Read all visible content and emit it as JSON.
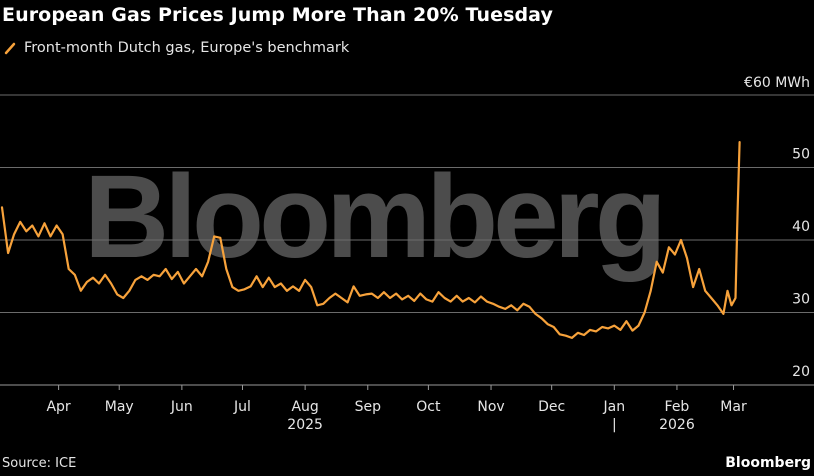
{
  "page": {
    "title": "European Gas Prices Jump More Than 20% Tuesday",
    "source": "Source: ICE",
    "brand": "Bloomberg",
    "watermark": "Bloomberg"
  },
  "colors": {
    "line": "#f7a23b",
    "grid": "#6b6b6b",
    "text": "#e6e6e6",
    "background": "#000000"
  },
  "chart_data": {
    "type": "line",
    "title": "European Gas Prices Jump More Than 20% Tuesday",
    "legend": {
      "position": "top-left"
    },
    "series": [
      {
        "name": "Front-month Dutch gas, Europe's benchmark",
        "points": [
          [
            "2025-03-04",
            44.5
          ],
          [
            "2025-03-07",
            38.2
          ],
          [
            "2025-03-10",
            40.8
          ],
          [
            "2025-03-13",
            42.5
          ],
          [
            "2025-03-16",
            41.2
          ],
          [
            "2025-03-19",
            42.0
          ],
          [
            "2025-03-22",
            40.5
          ],
          [
            "2025-03-25",
            42.3
          ],
          [
            "2025-03-28",
            40.5
          ],
          [
            "2025-03-31",
            42.0
          ],
          [
            "2025-04-03",
            40.8
          ],
          [
            "2025-04-06",
            36.0
          ],
          [
            "2025-04-09",
            35.2
          ],
          [
            "2025-04-12",
            33.0
          ],
          [
            "2025-04-15",
            34.2
          ],
          [
            "2025-04-18",
            34.8
          ],
          [
            "2025-04-21",
            34.0
          ],
          [
            "2025-04-24",
            35.2
          ],
          [
            "2025-04-27",
            34.0
          ],
          [
            "2025-04-30",
            32.5
          ],
          [
            "2025-05-03",
            32.0
          ],
          [
            "2025-05-06",
            33.0
          ],
          [
            "2025-05-09",
            34.5
          ],
          [
            "2025-05-12",
            35.0
          ],
          [
            "2025-05-15",
            34.5
          ],
          [
            "2025-05-18",
            35.2
          ],
          [
            "2025-05-21",
            35.0
          ],
          [
            "2025-05-24",
            36.0
          ],
          [
            "2025-05-27",
            34.6
          ],
          [
            "2025-05-30",
            35.6
          ],
          [
            "2025-06-02",
            34.0
          ],
          [
            "2025-06-05",
            35.0
          ],
          [
            "2025-06-08",
            36.0
          ],
          [
            "2025-06-11",
            35.0
          ],
          [
            "2025-06-14",
            37.0
          ],
          [
            "2025-06-17",
            40.5
          ],
          [
            "2025-06-20",
            40.3
          ],
          [
            "2025-06-23",
            36.0
          ],
          [
            "2025-06-26",
            33.5
          ],
          [
            "2025-06-29",
            33.0
          ],
          [
            "2025-07-02",
            33.2
          ],
          [
            "2025-07-05",
            33.6
          ],
          [
            "2025-07-08",
            35.0
          ],
          [
            "2025-07-11",
            33.5
          ],
          [
            "2025-07-14",
            34.8
          ],
          [
            "2025-07-17",
            33.5
          ],
          [
            "2025-07-20",
            34.0
          ],
          [
            "2025-07-23",
            33.0
          ],
          [
            "2025-07-26",
            33.6
          ],
          [
            "2025-07-29",
            33.0
          ],
          [
            "2025-08-01",
            34.5
          ],
          [
            "2025-08-04",
            33.5
          ],
          [
            "2025-08-07",
            31.0
          ],
          [
            "2025-08-10",
            31.2
          ],
          [
            "2025-08-13",
            32.0
          ],
          [
            "2025-08-16",
            32.6
          ],
          [
            "2025-08-19",
            32.0
          ],
          [
            "2025-08-22",
            31.4
          ],
          [
            "2025-08-25",
            33.6
          ],
          [
            "2025-08-28",
            32.3
          ],
          [
            "2025-08-31",
            32.5
          ],
          [
            "2025-09-03",
            32.6
          ],
          [
            "2025-09-06",
            32.0
          ],
          [
            "2025-09-09",
            32.8
          ],
          [
            "2025-09-12",
            32.0
          ],
          [
            "2025-09-15",
            32.6
          ],
          [
            "2025-09-18",
            31.8
          ],
          [
            "2025-09-21",
            32.3
          ],
          [
            "2025-09-24",
            31.6
          ],
          [
            "2025-09-27",
            32.6
          ],
          [
            "2025-09-30",
            31.8
          ],
          [
            "2025-10-03",
            31.5
          ],
          [
            "2025-10-06",
            32.8
          ],
          [
            "2025-10-09",
            32.0
          ],
          [
            "2025-10-12",
            31.5
          ],
          [
            "2025-10-15",
            32.3
          ],
          [
            "2025-10-18",
            31.5
          ],
          [
            "2025-10-21",
            32.0
          ],
          [
            "2025-10-24",
            31.4
          ],
          [
            "2025-10-27",
            32.2
          ],
          [
            "2025-10-30",
            31.5
          ],
          [
            "2025-11-02",
            31.2
          ],
          [
            "2025-11-05",
            30.8
          ],
          [
            "2025-11-08",
            30.5
          ],
          [
            "2025-11-11",
            31.0
          ],
          [
            "2025-11-14",
            30.3
          ],
          [
            "2025-11-17",
            31.2
          ],
          [
            "2025-11-20",
            30.8
          ],
          [
            "2025-11-23",
            29.8
          ],
          [
            "2025-11-26",
            29.2
          ],
          [
            "2025-11-29",
            28.4
          ],
          [
            "2025-12-02",
            28.0
          ],
          [
            "2025-12-05",
            27.0
          ],
          [
            "2025-12-08",
            26.8
          ],
          [
            "2025-12-11",
            26.5
          ],
          [
            "2025-12-14",
            27.2
          ],
          [
            "2025-12-17",
            26.9
          ],
          [
            "2025-12-20",
            27.6
          ],
          [
            "2025-12-23",
            27.4
          ],
          [
            "2025-12-26",
            28.0
          ],
          [
            "2025-12-29",
            27.8
          ],
          [
            "2026-01-01",
            28.2
          ],
          [
            "2026-01-04",
            27.6
          ],
          [
            "2026-01-07",
            28.8
          ],
          [
            "2026-01-10",
            27.5
          ],
          [
            "2026-01-13",
            28.2
          ],
          [
            "2026-01-16",
            30.0
          ],
          [
            "2026-01-19",
            33.0
          ],
          [
            "2026-01-22",
            37.0
          ],
          [
            "2026-01-25",
            35.5
          ],
          [
            "2026-01-28",
            39.0
          ],
          [
            "2026-01-31",
            38.0
          ],
          [
            "2026-02-03",
            40.0
          ],
          [
            "2026-02-06",
            37.5
          ],
          [
            "2026-02-09",
            33.5
          ],
          [
            "2026-02-12",
            36.0
          ],
          [
            "2026-02-15",
            33.0
          ],
          [
            "2026-02-18",
            32.0
          ],
          [
            "2026-02-21",
            31.0
          ],
          [
            "2026-02-24",
            29.8
          ],
          [
            "2026-02-26",
            33.0
          ],
          [
            "2026-02-28",
            31.0
          ],
          [
            "2026-03-02",
            32.0
          ],
          [
            "2026-03-03",
            44.0
          ],
          [
            "2026-03-04",
            53.5
          ]
        ]
      }
    ],
    "x_range": [
      "2025-03-03",
      "2026-03-24"
    ],
    "x_ticks": [
      {
        "label": "Apr",
        "date": "2025-04-01"
      },
      {
        "label": "May",
        "date": "2025-05-01"
      },
      {
        "label": "Jun",
        "date": "2025-06-01"
      },
      {
        "label": "Jul",
        "date": "2025-07-01"
      },
      {
        "label": "Aug",
        "date": "2025-08-01"
      },
      {
        "label": "Sep",
        "date": "2025-09-01"
      },
      {
        "label": "Oct",
        "date": "2025-10-01"
      },
      {
        "label": "Nov",
        "date": "2025-11-01"
      },
      {
        "label": "Dec",
        "date": "2025-12-01"
      },
      {
        "label": "Jan",
        "date": "2026-01-01"
      },
      {
        "label": "Feb",
        "date": "2026-02-01"
      },
      {
        "label": "Mar",
        "date": "2026-03-01"
      }
    ],
    "year_labels": [
      {
        "label": "2025",
        "date": "2025-08-01"
      },
      {
        "label": "2026",
        "date": "2026-02-01"
      }
    ],
    "year_separator_date": "2026-01-01",
    "year_separator_label": "|",
    "ylim": [
      20,
      60
    ],
    "y_ticks": [
      {
        "value": 20,
        "label": "20"
      },
      {
        "value": 30,
        "label": "30"
      },
      {
        "value": 40,
        "label": "40"
      },
      {
        "value": 50,
        "label": "50"
      },
      {
        "value": 60,
        "label": "€60 MWh"
      }
    ],
    "grid": true
  }
}
